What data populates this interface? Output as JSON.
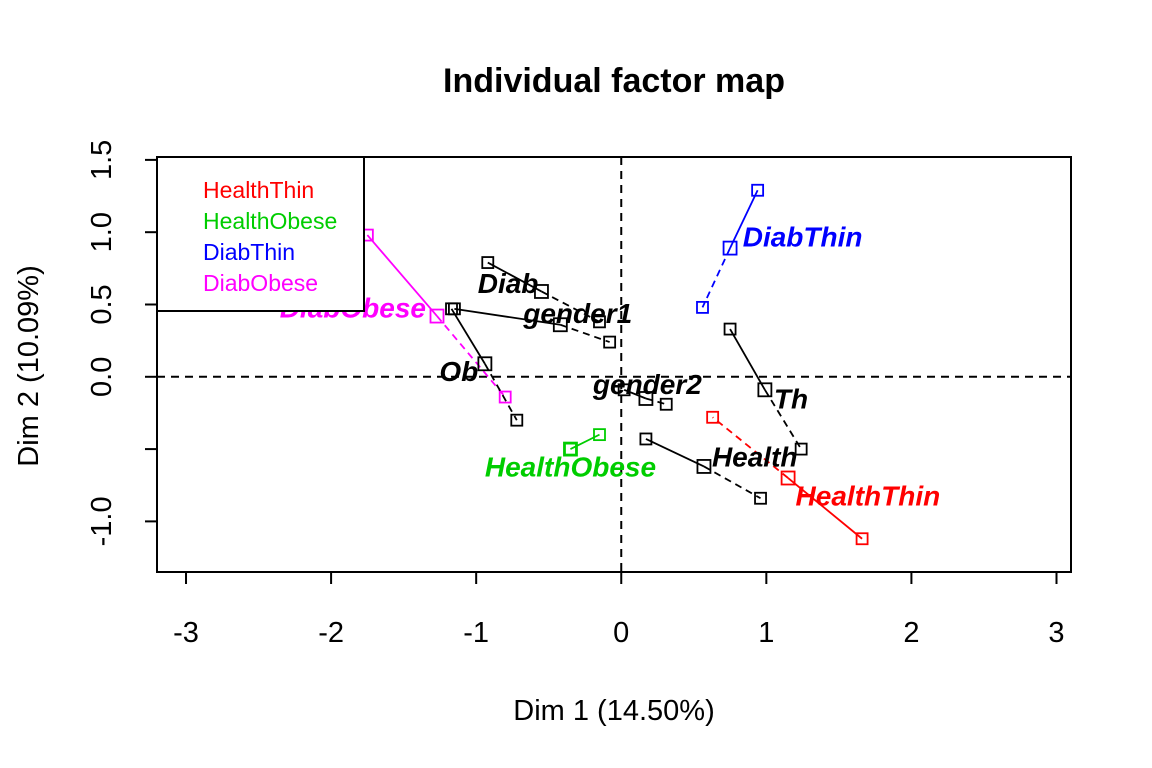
{
  "chart_data": {
    "type": "scatter",
    "title": "Individual factor map",
    "xlabel": "Dim 1 (14.50%)",
    "ylabel": "Dim 2 (10.09%)",
    "xlim": [
      -3.2,
      3.1
    ],
    "ylim": [
      -1.35,
      1.52
    ],
    "x_ticks": [
      -3,
      -2,
      -1,
      0,
      1,
      2,
      3
    ],
    "y_ticks": [
      -1.0,
      -0.5,
      0.0,
      0.5,
      1.0,
      1.5
    ],
    "x_tick_labels": [
      "-3",
      "-2",
      "-1",
      "0",
      "1",
      "2",
      "3"
    ],
    "y_tick_labels": [
      "-1.0",
      "",
      "0.0",
      "0.5",
      "1.0",
      "1.5"
    ],
    "reference_lines": {
      "x": 0,
      "y": 0,
      "style": "dashed"
    },
    "legend": {
      "position": "top-left",
      "entries": [
        {
          "label": "HealthThin",
          "color": "#ff0000"
        },
        {
          "label": "HealthObese",
          "color": "#00cd00"
        },
        {
          "label": "DiabThin",
          "color": "#0000ff"
        },
        {
          "label": "DiabObese",
          "color": "#ff00ff"
        }
      ]
    },
    "groups": [
      {
        "label": "HealthThin",
        "color": "#ff0000",
        "center": [
          1.15,
          -0.7
        ],
        "label_at": [
          1.7,
          -0.82
        ],
        "partials": [
          [
            1.66,
            -1.12
          ],
          [
            0.63,
            -0.28
          ]
        ]
      },
      {
        "label": "HealthObese",
        "color": "#00cd00",
        "center": [
          -0.35,
          -0.5
        ],
        "label_at": [
          -0.35,
          -0.62
        ],
        "partials": [
          [
            -0.15,
            -0.4
          ],
          [
            -0.35,
            -0.5
          ]
        ]
      },
      {
        "label": "DiabThin",
        "color": "#0000ff",
        "center": [
          0.75,
          0.89
        ],
        "label_at": [
          1.25,
          0.97
        ],
        "partials": [
          [
            0.94,
            1.29
          ],
          [
            0.56,
            0.48
          ]
        ]
      },
      {
        "label": "DiabObese",
        "color": "#ff00ff",
        "center": [
          -1.27,
          0.42
        ],
        "label_at": [
          -1.85,
          0.48
        ],
        "partials": [
          [
            -1.75,
            0.98
          ],
          [
            -0.8,
            -0.14
          ]
        ]
      },
      {
        "label": "Diab",
        "color": "#000000",
        "center": [
          -0.55,
          0.59
        ],
        "label_at": [
          -0.78,
          0.65
        ],
        "partials": [
          [
            -0.92,
            0.79
          ],
          [
            -0.15,
            0.38
          ]
        ]
      },
      {
        "label": "gender1",
        "color": "#000000",
        "center": [
          -0.42,
          0.36
        ],
        "label_at": [
          -0.3,
          0.44
        ],
        "partials": [
          [
            -1.15,
            0.47
          ],
          [
            -0.08,
            0.24
          ]
        ]
      },
      {
        "label": "Ob",
        "color": "#000000",
        "center": [
          -0.94,
          0.09
        ],
        "label_at": [
          -1.12,
          0.04
        ],
        "partials": [
          [
            -1.17,
            0.47
          ],
          [
            -0.72,
            -0.3
          ]
        ]
      },
      {
        "label": "gender2",
        "color": "#000000",
        "center": [
          0.17,
          -0.15
        ],
        "label_at": [
          0.18,
          -0.05
        ],
        "partials": [
          [
            0.02,
            -0.09
          ],
          [
            0.31,
            -0.19
          ]
        ]
      },
      {
        "label": "Th",
        "color": "#000000",
        "center": [
          0.99,
          -0.09
        ],
        "label_at": [
          1.17,
          -0.15
        ],
        "partials": [
          [
            0.75,
            0.33
          ],
          [
            1.24,
            -0.5
          ]
        ]
      },
      {
        "label": "Health",
        "color": "#000000",
        "center": [
          0.57,
          -0.62
        ],
        "label_at": [
          0.92,
          -0.55
        ],
        "partials": [
          [
            0.17,
            -0.43
          ],
          [
            0.96,
            -0.84
          ]
        ]
      }
    ]
  }
}
